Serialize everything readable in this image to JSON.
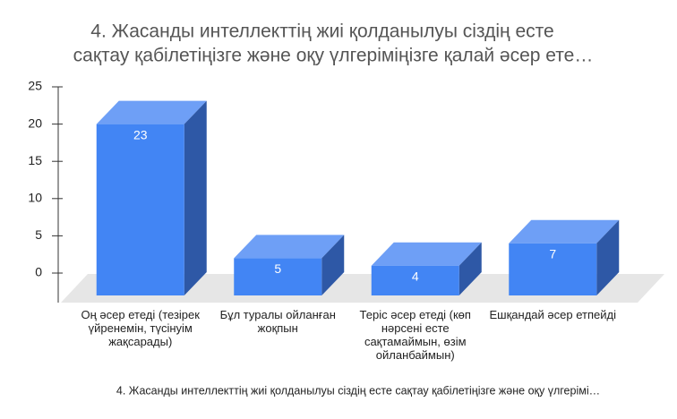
{
  "chart_data": {
    "type": "bar3d",
    "title": [
      "4. Жасанды интеллекттің жиі қолданылуы сіздің есте",
      "сақтау қабілетіңізге және оқу үлгеріміңізге қалай әсер ете…"
    ],
    "x_label": "4. Жасанды интеллекттің жиі қолданылуы сіздің есте сақтау қабілетіңізге және оқу үлгерімі…",
    "categories": [
      "Оң әсер етеді (тезірек үйренемін, түсінуім жақсарады)",
      "Бұл туралы ойланған жоқпын",
      "Теріс әсер етеді (көп нәрсені есте сақтамаймын, өзім ойланбаймын)",
      "Ешқандай әсер етпейді"
    ],
    "values": [
      23,
      5,
      4,
      7
    ],
    "colors": {
      "front": "#4285f4",
      "top": "#6e9ff6",
      "side": "#2e58a6"
    },
    "ylim": [
      0,
      25
    ],
    "yticks": [
      0,
      5,
      10,
      15,
      20,
      25
    ]
  }
}
